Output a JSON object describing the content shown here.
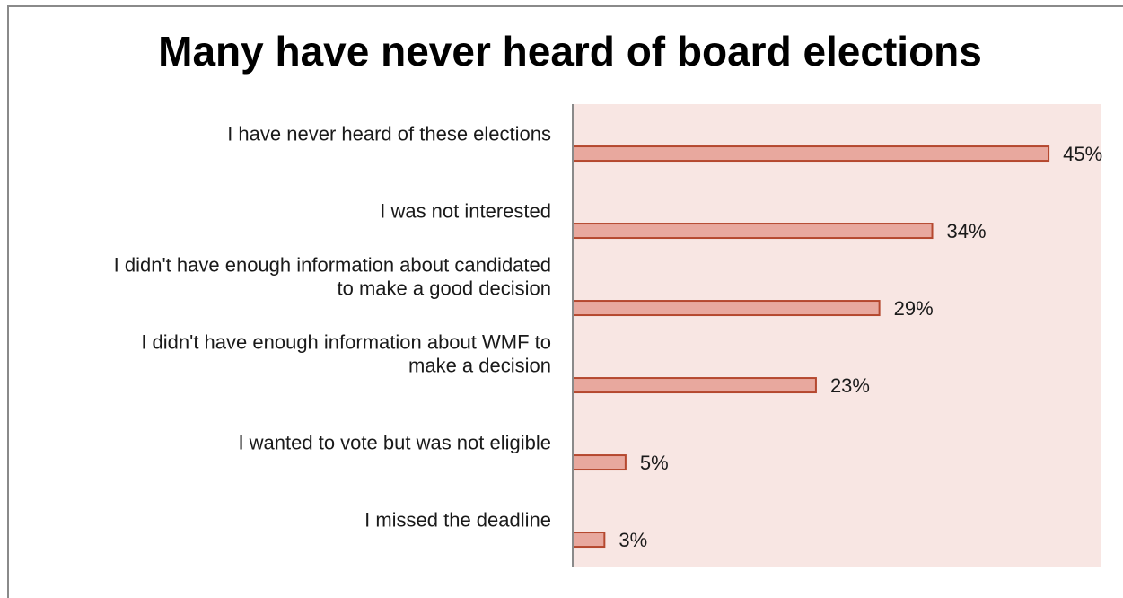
{
  "chart_data": {
    "type": "bar",
    "orientation": "horizontal",
    "title": "Many have never heard of board elections",
    "categories": [
      "I have never heard of these elections",
      "I was not interested",
      "I didn't have enough information about candidated to make a good decision",
      "I didn't have enough information about WMF to make a decision",
      "I wanted to vote but was not eligible",
      "I missed the deadline"
    ],
    "category_lines": [
      [
        "I have never heard of these elections"
      ],
      [
        "I was not interested"
      ],
      [
        "I didn't have enough information about candidated",
        "to make a good decision"
      ],
      [
        "I didn't have enough information about WMF to",
        "make a decision"
      ],
      [
        "I wanted to vote but was not eligible"
      ],
      [
        "I missed the deadline"
      ]
    ],
    "values": [
      45,
      34,
      29,
      23,
      5,
      3
    ],
    "value_labels": [
      "45%",
      "34%",
      "29%",
      "23%",
      "5%",
      "3%"
    ],
    "xlim": [
      0,
      50
    ],
    "colors": {
      "bar_fill": "#e8a89e",
      "bar_stroke": "#b5482f",
      "plot_background": "#f8e6e3",
      "axis": "#8a8a8a"
    },
    "grid": false,
    "legend": "none"
  }
}
